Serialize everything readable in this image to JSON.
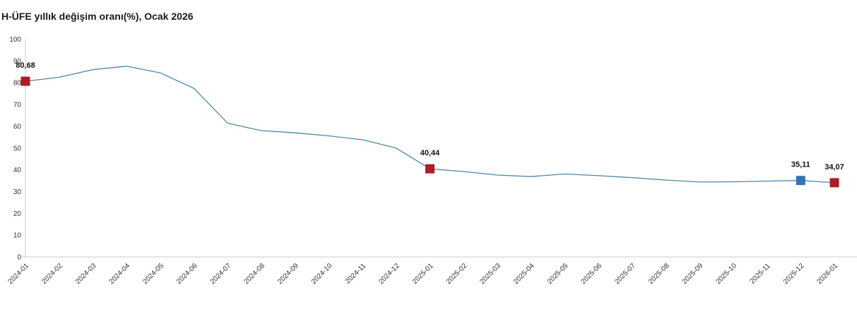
{
  "chart_data": {
    "type": "line",
    "title": "H-ÜFE yıllık değişim oranı(%), Ocak 2026",
    "xlabel": "",
    "ylabel": "",
    "ylim": [
      0,
      100
    ],
    "yticks": [
      0,
      10,
      20,
      30,
      40,
      50,
      60,
      70,
      80,
      90,
      100
    ],
    "grid": false,
    "legend": false,
    "categories": [
      "2024-01",
      "2024-02",
      "2024-03",
      "2024-04",
      "2024-05",
      "2024-06",
      "2024-07",
      "2024-08",
      "2024-09",
      "2024-10",
      "2024-11",
      "2024-12",
      "2025-01",
      "2025-02",
      "2025-03",
      "2025-04",
      "2025-05",
      "2025-06",
      "2025-07",
      "2025-08",
      "2025-09",
      "2025-10",
      "2025-11",
      "2025-12",
      "2026-01"
    ],
    "values": [
      80.68,
      82.5,
      86.0,
      87.6,
      84.5,
      77.4,
      61.4,
      58.0,
      57.0,
      55.6,
      53.8,
      50.0,
      40.44,
      39.2,
      37.6,
      36.9,
      38.1,
      37.3,
      36.4,
      35.3,
      34.4,
      34.5,
      34.8,
      35.11,
      34.07
    ],
    "labeled_points": [
      {
        "category": "2024-01",
        "value": 80.68,
        "label": "80,68",
        "marker_color": "#ae1c24"
      },
      {
        "category": "2025-01",
        "value": 40.44,
        "label": "40,44",
        "marker_color": "#ae1c24"
      },
      {
        "category": "2025-12",
        "value": 35.11,
        "label": "35,11",
        "marker_color": "#2e74b5"
      },
      {
        "category": "2026-01",
        "value": 34.07,
        "label": "34,07",
        "marker_color": "#ae1c24"
      }
    ],
    "line_color": "#4e87a5",
    "axis_color": "#cccccc",
    "tick_color": "#333333",
    "point_label_color": "#111111"
  }
}
